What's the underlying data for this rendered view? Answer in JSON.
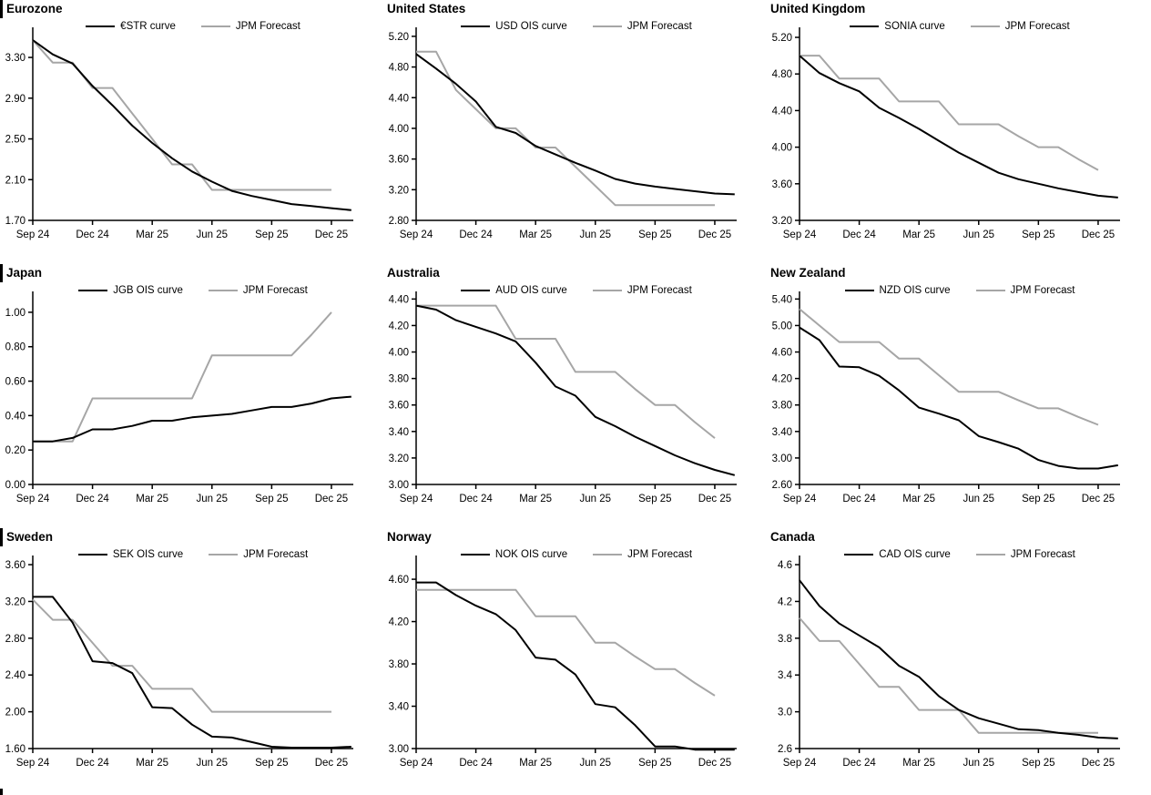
{
  "x_axis": {
    "tick_positions": [
      0,
      3,
      6,
      9,
      12,
      15
    ],
    "tick_labels": [
      "Sep 24",
      "Dec 24",
      "Mar 25",
      "Jun 25",
      "Sep 25",
      "Dec 25"
    ],
    "months_span": 16.1
  },
  "colors": {
    "curve": "#000000",
    "forecast": "#a6a6a6"
  },
  "chart_data": [
    {
      "type": "line",
      "region": "Eurozone",
      "left_bar": true,
      "ylim": [
        1.7,
        3.56
      ],
      "yticks": [
        1.7,
        2.1,
        2.5,
        2.9,
        3.3
      ],
      "y_decimals": 2,
      "series": [
        {
          "name": "€STR curve",
          "color": "#000000",
          "values": [
            3.47,
            3.33,
            3.24,
            3.02,
            2.83,
            2.63,
            2.46,
            2.31,
            2.18,
            2.08,
            1.99,
            1.94,
            1.9,
            1.86,
            1.84,
            1.82,
            1.8
          ]
        },
        {
          "name": "JPM Forecast",
          "color": "#a6a6a6",
          "values": [
            3.47,
            3.25,
            3.25,
            3.0,
            3.0,
            2.75,
            2.5,
            2.25,
            2.25,
            2.0,
            2.0,
            2.0,
            2.0,
            2.0,
            2.0,
            2.0
          ]
        }
      ]
    },
    {
      "type": "line",
      "region": "United States",
      "left_bar": false,
      "ylim": [
        2.8,
        5.27
      ],
      "yticks": [
        2.8,
        3.2,
        3.6,
        4.0,
        4.4,
        4.8,
        5.2
      ],
      "y_decimals": 2,
      "series": [
        {
          "name": "USD OIS curve",
          "color": "#000000",
          "values": [
            4.97,
            4.78,
            4.58,
            4.35,
            4.02,
            3.94,
            3.77,
            3.66,
            3.55,
            3.45,
            3.34,
            3.28,
            3.24,
            3.21,
            3.18,
            3.15,
            3.14
          ]
        },
        {
          "name": "JPM Forecast",
          "color": "#a6a6a6",
          "values": [
            5.0,
            5.0,
            4.5,
            4.25,
            4.0,
            4.0,
            3.75,
            3.75,
            3.5,
            3.25,
            3.0,
            3.0,
            3.0,
            3.0,
            3.0,
            3.0
          ]
        }
      ]
    },
    {
      "type": "line",
      "region": "United Kingdom",
      "left_bar": false,
      "ylim": [
        3.2,
        5.27
      ],
      "yticks": [
        3.2,
        3.6,
        4.0,
        4.4,
        4.8,
        5.2
      ],
      "y_decimals": 2,
      "series": [
        {
          "name": "SONIA curve",
          "color": "#000000",
          "values": [
            5.0,
            4.81,
            4.7,
            4.61,
            4.43,
            4.32,
            4.2,
            4.07,
            3.94,
            3.83,
            3.72,
            3.65,
            3.6,
            3.55,
            3.51,
            3.47,
            3.45
          ]
        },
        {
          "name": "JPM Forecast",
          "color": "#a6a6a6",
          "values": [
            5.0,
            5.0,
            4.75,
            4.75,
            4.75,
            4.5,
            4.5,
            4.5,
            4.25,
            4.25,
            4.25,
            4.12,
            4.0,
            4.0,
            3.87,
            3.75
          ]
        }
      ]
    },
    {
      "type": "line",
      "region": "Japan",
      "left_bar": true,
      "ylim": [
        0.0,
        1.1
      ],
      "yticks": [
        0.0,
        0.2,
        0.4,
        0.6,
        0.8,
        1.0
      ],
      "y_decimals": 2,
      "series": [
        {
          "name": "JGB OIS curve",
          "color": "#000000",
          "values": [
            0.25,
            0.25,
            0.27,
            0.32,
            0.32,
            0.34,
            0.37,
            0.37,
            0.39,
            0.4,
            0.41,
            0.43,
            0.45,
            0.45,
            0.47,
            0.5,
            0.51
          ]
        },
        {
          "name": "JPM Forecast",
          "color": "#a6a6a6",
          "values": [
            0.25,
            0.25,
            0.25,
            0.5,
            0.5,
            0.5,
            0.5,
            0.5,
            0.5,
            0.75,
            0.75,
            0.75,
            0.75,
            0.75,
            0.87,
            1.0
          ]
        }
      ]
    },
    {
      "type": "line",
      "region": "Australia",
      "left_bar": false,
      "ylim": [
        3.0,
        4.43
      ],
      "yticks": [
        3.0,
        3.2,
        3.4,
        3.6,
        3.8,
        4.0,
        4.2,
        4.4
      ],
      "y_decimals": 2,
      "series": [
        {
          "name": "AUD OIS curve",
          "color": "#000000",
          "values": [
            4.35,
            4.32,
            4.24,
            4.19,
            4.14,
            4.08,
            3.92,
            3.74,
            3.67,
            3.51,
            3.44,
            3.36,
            3.29,
            3.22,
            3.16,
            3.11,
            3.07
          ]
        },
        {
          "name": "JPM Forecast",
          "color": "#a6a6a6",
          "values": [
            4.35,
            4.35,
            4.35,
            4.35,
            4.35,
            4.1,
            4.1,
            4.1,
            3.85,
            3.85,
            3.85,
            3.72,
            3.6,
            3.6,
            3.47,
            3.35
          ]
        }
      ]
    },
    {
      "type": "line",
      "region": "New Zealand",
      "left_bar": false,
      "ylim": [
        2.6,
        5.46
      ],
      "yticks": [
        2.6,
        3.0,
        3.4,
        3.8,
        4.2,
        4.6,
        5.0,
        5.4
      ],
      "y_decimals": 2,
      "series": [
        {
          "name": "NZD OIS curve",
          "color": "#000000",
          "values": [
            4.97,
            4.78,
            4.38,
            4.37,
            4.24,
            4.02,
            3.76,
            3.67,
            3.57,
            3.33,
            3.24,
            3.14,
            2.97,
            2.88,
            2.84,
            2.84,
            2.89
          ]
        },
        {
          "name": "JPM Forecast",
          "color": "#a6a6a6",
          "values": [
            5.25,
            5.0,
            4.75,
            4.75,
            4.75,
            4.5,
            4.5,
            4.25,
            4.0,
            4.0,
            4.0,
            3.87,
            3.75,
            3.75,
            3.62,
            3.5
          ]
        }
      ]
    },
    {
      "type": "line",
      "region": "Sweden",
      "left_bar": true,
      "ylim": [
        1.6,
        3.66
      ],
      "yticks": [
        1.6,
        2.0,
        2.4,
        2.8,
        3.2,
        3.6
      ],
      "y_decimals": 2,
      "series": [
        {
          "name": "SEK OIS curve",
          "color": "#000000",
          "values": [
            3.25,
            3.25,
            2.97,
            2.55,
            2.53,
            2.42,
            2.05,
            2.04,
            1.86,
            1.73,
            1.72,
            1.67,
            1.62,
            1.61,
            1.61,
            1.61,
            1.62
          ]
        },
        {
          "name": "JPM Forecast",
          "color": "#a6a6a6",
          "values": [
            3.22,
            3.0,
            3.0,
            2.75,
            2.5,
            2.5,
            2.25,
            2.25,
            2.25,
            2.0,
            2.0,
            2.0,
            2.0,
            2.0,
            2.0,
            2.0
          ]
        }
      ]
    },
    {
      "type": "line",
      "region": "Norway",
      "left_bar": false,
      "ylim": [
        3.0,
        4.79
      ],
      "yticks": [
        3.0,
        3.4,
        3.8,
        4.2,
        4.6
      ],
      "y_decimals": 2,
      "series": [
        {
          "name": "NOK OIS curve",
          "color": "#000000",
          "values": [
            4.57,
            4.57,
            4.45,
            4.35,
            4.27,
            4.12,
            3.86,
            3.84,
            3.7,
            3.42,
            3.39,
            3.22,
            3.02,
            3.02,
            2.99,
            2.99,
            2.99
          ]
        },
        {
          "name": "JPM Forecast",
          "color": "#a6a6a6",
          "values": [
            4.5,
            4.5,
            4.5,
            4.5,
            4.5,
            4.5,
            4.25,
            4.25,
            4.25,
            4.0,
            4.0,
            3.87,
            3.75,
            3.75,
            3.62,
            3.5
          ]
        }
      ]
    },
    {
      "type": "line",
      "region": "Canada",
      "left_bar": false,
      "ylim": [
        2.6,
        4.66
      ],
      "yticks": [
        2.6,
        3.0,
        3.4,
        3.8,
        4.2,
        4.6
      ],
      "y_decimals": 1,
      "series": [
        {
          "name": "CAD OIS curve",
          "color": "#000000",
          "values": [
            4.43,
            4.15,
            3.96,
            3.83,
            3.7,
            3.5,
            3.38,
            3.17,
            3.02,
            2.93,
            2.87,
            2.81,
            2.8,
            2.77,
            2.75,
            2.72,
            2.71
          ]
        },
        {
          "name": "JPM Forecast",
          "color": "#a6a6a6",
          "values": [
            4.02,
            3.77,
            3.77,
            3.52,
            3.27,
            3.27,
            3.02,
            3.02,
            3.02,
            2.77,
            2.77,
            2.77,
            2.77,
            2.77,
            2.77,
            2.77
          ]
        }
      ]
    }
  ]
}
